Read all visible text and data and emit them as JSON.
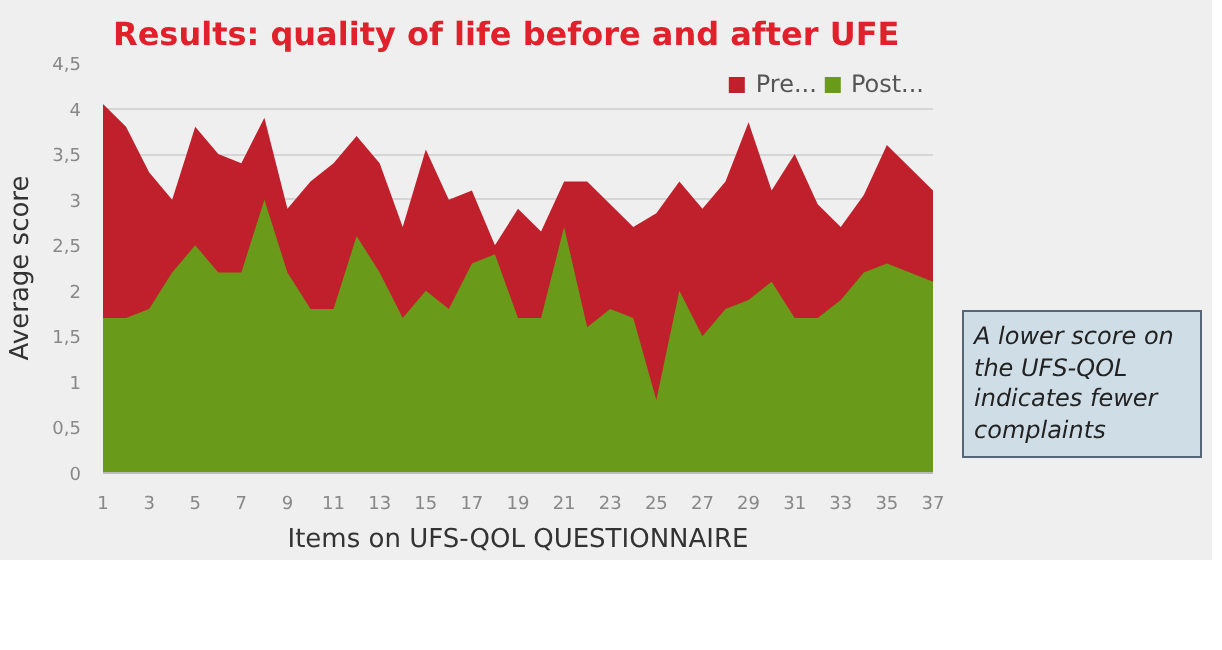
{
  "chart_data": {
    "type": "area",
    "title": "Results: quality of life before and after UFE",
    "xlabel": "Items on UFS-QOL QUESTIONNAIRE",
    "ylabel": "Average score",
    "x": [
      1,
      2,
      3,
      4,
      5,
      6,
      7,
      8,
      9,
      10,
      11,
      12,
      13,
      14,
      15,
      16,
      17,
      18,
      19,
      20,
      21,
      22,
      23,
      24,
      25,
      26,
      27,
      28,
      29,
      30,
      31,
      32,
      33,
      34,
      35,
      36,
      37
    ],
    "series": [
      {
        "name": "Pre...",
        "color": "#c0202c",
        "values": [
          4.05,
          3.8,
          3.3,
          3.0,
          3.8,
          3.5,
          3.4,
          3.9,
          2.9,
          3.2,
          3.4,
          3.7,
          3.4,
          2.7,
          3.55,
          3.0,
          3.1,
          2.5,
          2.9,
          2.65,
          3.2,
          3.2,
          2.95,
          2.7,
          2.85,
          3.2,
          2.9,
          3.2,
          3.85,
          3.1,
          3.5,
          2.95,
          2.7,
          3.05,
          3.6,
          3.35,
          3.1
        ]
      },
      {
        "name": "Post...",
        "color": "#6a9a1a",
        "values": [
          1.7,
          1.7,
          1.8,
          2.2,
          2.5,
          2.2,
          2.2,
          3.0,
          2.2,
          1.8,
          1.8,
          2.6,
          2.2,
          1.7,
          2.0,
          1.8,
          2.3,
          2.4,
          1.7,
          1.7,
          2.7,
          1.6,
          1.8,
          1.7,
          0.8,
          2.0,
          1.5,
          1.8,
          1.9,
          2.1,
          1.7,
          1.7,
          1.9,
          2.2,
          2.3,
          2.2,
          2.1
        ]
      }
    ],
    "xlim": [
      1,
      37
    ],
    "xticks": [
      1,
      3,
      5,
      7,
      9,
      11,
      13,
      15,
      17,
      19,
      21,
      23,
      25,
      27,
      29,
      31,
      33,
      35,
      37
    ],
    "ylim": [
      0,
      4.5
    ],
    "yticks": [
      0,
      {
        "value": 0.5,
        "label": "0,5"
      },
      1,
      {
        "value": 1.5,
        "label": "1,5"
      },
      2,
      {
        "value": 2.5,
        "label": "2,5"
      },
      3,
      {
        "value": 3.5,
        "label": "3,5"
      },
      4,
      {
        "value": 4.5,
        "label": "4,5"
      }
    ],
    "grid": "y",
    "legend": "top right",
    "annotations": [
      "A lower score on the UFS-QOL indicates fewer complaints"
    ]
  }
}
